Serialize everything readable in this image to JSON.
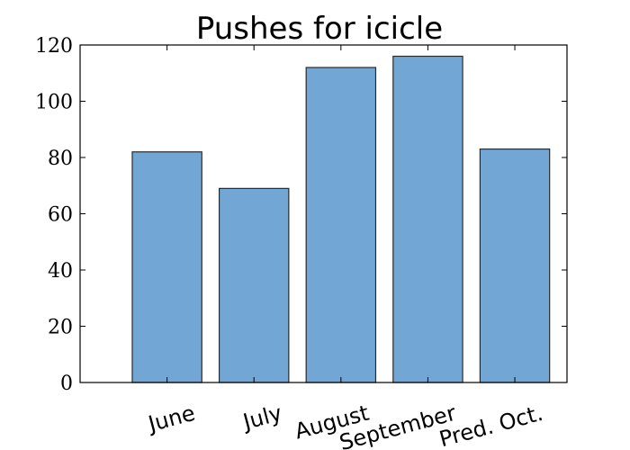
{
  "chart_data": {
    "type": "bar",
    "title": "Pushes for icicle",
    "categories": [
      "June",
      "July",
      "August",
      "September",
      "Pred. Oct."
    ],
    "values": [
      82,
      69,
      112,
      116,
      83
    ],
    "xlabel": "",
    "ylabel": "",
    "ylim": [
      0,
      120
    ],
    "yticks": [
      0,
      20,
      40,
      60,
      80,
      100,
      120
    ],
    "grid": false,
    "legend": "none",
    "bar_color": "#72a6d5",
    "edge_color": "#2b2b2b"
  }
}
